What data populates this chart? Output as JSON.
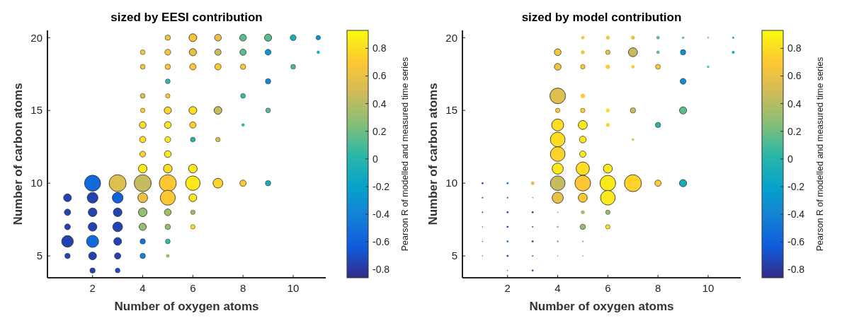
{
  "chart_data": [
    {
      "type": "bubble",
      "title": "sized by EESI contribution",
      "xlabel": "Number of oxygen atoms",
      "ylabel": "Number of carbon atoms",
      "clabel": "Pearson R of modelled and measured time series",
      "xlim": [
        0.2,
        11.3
      ],
      "xticks": [
        2,
        4,
        6,
        8,
        10
      ],
      "ylim": [
        3.5,
        20.5
      ],
      "yticks": [
        5,
        10,
        15,
        20
      ],
      "clim": [
        -0.86,
        0.93
      ],
      "cticks": [
        -0.8,
        -0.6,
        -0.4,
        -0.2,
        0,
        0.2,
        0.4,
        0.6,
        0.8
      ],
      "series": [
        {
          "x": [
            1,
            1,
            1,
            1,
            1,
            2,
            2,
            2,
            2,
            2,
            2,
            2,
            3,
            3,
            3,
            3,
            3,
            3,
            3,
            4,
            4,
            4,
            4,
            4,
            4,
            4,
            4,
            4,
            4,
            4,
            4,
            4,
            4,
            5,
            5,
            5,
            5,
            5,
            5,
            5,
            5,
            5,
            5,
            5,
            5,
            5,
            5,
            5,
            5,
            6,
            6,
            6,
            6,
            6,
            6,
            6,
            6,
            6,
            6,
            6,
            7,
            7,
            7,
            7,
            7,
            7,
            8,
            8,
            8,
            8,
            8,
            8,
            9,
            9,
            9,
            9,
            9,
            10,
            10,
            11,
            11
          ],
          "values": [
            9,
            8,
            7,
            6,
            5,
            10,
            9,
            8,
            7,
            6,
            5,
            4,
            10,
            9,
            8,
            7,
            6,
            5,
            4,
            19,
            18,
            16,
            15,
            14,
            13,
            12,
            11,
            10,
            9,
            8,
            7,
            6,
            5,
            20,
            19,
            18,
            17,
            16,
            15,
            14,
            13,
            12,
            11,
            10,
            9,
            8,
            7,
            6,
            5,
            20,
            19,
            18,
            15,
            14,
            13,
            11,
            10,
            9,
            8,
            7,
            20,
            19,
            18,
            15,
            13,
            10,
            20,
            19,
            18,
            16,
            14,
            10,
            20,
            19,
            17,
            15,
            10,
            20,
            18,
            20,
            19
          ],
          "sizes": [
            0.21,
            0.14,
            0.12,
            0.47,
            0.1,
            0.89,
            0.4,
            0.26,
            0.26,
            0.51,
            0.21,
            0.1,
            1,
            0.4,
            0.26,
            0.33,
            0.21,
            0.14,
            0.08,
            0.08,
            0.08,
            0.08,
            0.07,
            0.16,
            0.14,
            0.12,
            0.26,
            1,
            0.33,
            0.26,
            0.18,
            0.1,
            0.1,
            0.1,
            0.12,
            0.1,
            0.08,
            0.07,
            0.18,
            0.16,
            0.12,
            0.16,
            0.26,
            1,
            0.78,
            0.16,
            0.1,
            0.08,
            0.04,
            0.21,
            0.18,
            0.14,
            0.21,
            0.14,
            0.08,
            0.26,
            0.73,
            0.21,
            0.07,
            0.07,
            0.16,
            0.14,
            0.14,
            0.21,
            0.07,
            0.33,
            0.16,
            0.14,
            0.1,
            0.08,
            0.03,
            0.14,
            0.18,
            0.12,
            0.1,
            0.08,
            0.1,
            0.12,
            0.08,
            0.07,
            0.03
          ],
          "cvalues": [
            -0.75,
            -0.75,
            -0.75,
            -0.75,
            -0.75,
            -0.55,
            -0.75,
            -0.75,
            -0.75,
            -0.55,
            -0.75,
            -0.75,
            0.55,
            -0.6,
            -0.75,
            -0.75,
            -0.75,
            -0.75,
            -0.7,
            0.65,
            0.65,
            0.55,
            0.7,
            0.8,
            0.8,
            0.75,
            0.85,
            0.45,
            0.6,
            0.3,
            0.3,
            -0.5,
            -0.4,
            0.65,
            0.65,
            0.7,
            0.05,
            0.7,
            0.75,
            0.85,
            0.85,
            0.85,
            0.8,
            0.7,
            0.7,
            0.35,
            0.3,
            0.05,
            0.3,
            0.65,
            0.6,
            0.7,
            0.8,
            0.75,
            0,
            0.85,
            0.85,
            0.85,
            0.3,
            0.8,
            0.6,
            0.45,
            0.7,
            0.45,
            0.5,
            0.75,
            0.15,
            0.15,
            0.7,
            0.05,
            0,
            0.7,
            0.15,
            -0.3,
            -0.35,
            0.15,
            -0.1,
            -0.1,
            0.1,
            -0.3,
            -0.1
          ]
        }
      ]
    },
    {
      "type": "bubble",
      "title": "sized by model contribution",
      "xlabel": "Number of oxygen atoms",
      "ylabel": "Number of carbon atoms",
      "clabel": "Pearson R of modelled and measured time series",
      "xlim": [
        0.2,
        11.3
      ],
      "xticks": [
        2,
        4,
        6,
        8,
        10
      ],
      "ylim": [
        3.5,
        20.5
      ],
      "yticks": [
        5,
        10,
        15,
        20
      ],
      "clim": [
        -0.86,
        0.93
      ],
      "cticks": [
        -0.8,
        -0.6,
        -0.4,
        -0.2,
        0,
        0.2,
        0.4,
        0.6,
        0.8
      ],
      "series": [
        {
          "x": [
            1,
            1,
            1,
            1,
            1,
            1,
            2,
            2,
            2,
            2,
            2,
            2,
            2,
            3,
            3,
            3,
            3,
            3,
            3,
            3,
            4,
            4,
            4,
            4,
            4,
            4,
            4,
            4,
            4,
            4,
            4,
            4,
            4,
            4,
            5,
            5,
            5,
            5,
            5,
            5,
            5,
            5,
            5,
            5,
            5,
            5,
            5,
            5,
            5,
            6,
            6,
            6,
            6,
            6,
            6,
            6,
            6,
            6,
            6,
            7,
            7,
            7,
            7,
            7,
            7,
            8,
            8,
            8,
            8,
            8,
            9,
            9,
            9,
            9,
            9,
            10,
            10,
            11,
            11
          ],
          "values": [
            10,
            9,
            8,
            7,
            6,
            5,
            10,
            9,
            8,
            7,
            6,
            5,
            4,
            10,
            9,
            8,
            7,
            6,
            5,
            4,
            19,
            18,
            16,
            15,
            14,
            13,
            12,
            11,
            10,
            9,
            8,
            7,
            6,
            5,
            20,
            19,
            18,
            16,
            15,
            14,
            13,
            12,
            11,
            10,
            9,
            8,
            7,
            6,
            5,
            20,
            19,
            18,
            15,
            14,
            11,
            10,
            9,
            8,
            7,
            20,
            19,
            18,
            15,
            13,
            10,
            20,
            19,
            18,
            14,
            10,
            20,
            19,
            17,
            15,
            10,
            20,
            18,
            20,
            19
          ],
          "sizes": [
            0.011,
            0.006,
            0.006,
            0.003,
            0.003,
            0.003,
            0.011,
            0.006,
            0.011,
            0.011,
            0.011,
            0.011,
            0.003,
            0.04,
            0.003,
            0.011,
            0.006,
            0.011,
            0.006,
            0.011,
            0.16,
            0.16,
            0.85,
            0.07,
            0.5,
            0.75,
            0.75,
            0.43,
            0.75,
            0.43,
            0.006,
            0.011,
            0.006,
            0.003,
            0.034,
            0.044,
            0.07,
            0.056,
            0.07,
            0.28,
            0.16,
            0.14,
            0.62,
            0.85,
            0.28,
            0.044,
            0.1,
            0.006,
            0.006,
            0.044,
            0.07,
            0.056,
            0.044,
            0.044,
            0.28,
            0.85,
            0.75,
            0.07,
            0.07,
            0.044,
            0.28,
            0.034,
            0.1,
            0.017,
            1,
            0.034,
            0.034,
            0.084,
            0.1,
            0.14,
            0.017,
            0.1,
            0.12,
            0.18,
            0.18,
            0.006,
            0.017,
            0.011,
            0.025
          ],
          "cvalues": [
            -0.75,
            -0.75,
            -0.75,
            -0.75,
            -0.75,
            -0.75,
            -0.55,
            -0.75,
            -0.75,
            -0.75,
            -0.55,
            -0.75,
            -0.75,
            0.55,
            -0.6,
            -0.75,
            -0.75,
            -0.75,
            -0.75,
            -0.7,
            0.65,
            0.65,
            0.55,
            0.7,
            0.8,
            0.8,
            0.75,
            0.85,
            0.45,
            0.6,
            0.3,
            0.3,
            -0.5,
            -0.4,
            0.65,
            0.65,
            0.7,
            0.7,
            0.75,
            0.85,
            0.85,
            0.85,
            0.8,
            0.7,
            0.7,
            0.35,
            0.3,
            0.05,
            0.3,
            0.65,
            0.6,
            0.7,
            0.8,
            0.75,
            0.85,
            0.85,
            0.85,
            0.3,
            0.8,
            0.6,
            0.45,
            0.7,
            0.45,
            0.5,
            0.75,
            0.15,
            0.15,
            0.7,
            0,
            0.7,
            0.15,
            -0.3,
            -0.35,
            0.15,
            -0.1,
            -0.1,
            0.1,
            -0.3,
            -0.1
          ]
        }
      ]
    }
  ]
}
